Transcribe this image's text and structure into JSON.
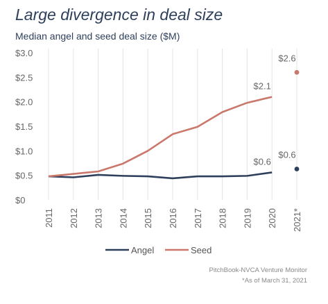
{
  "chart_data": {
    "type": "line",
    "title": "Large divergence in deal size",
    "subtitle": "Median angel and seed deal size ($M)",
    "categories": [
      "2011",
      "2012",
      "2013",
      "2014",
      "2015",
      "2016",
      "2017",
      "2018",
      "2019",
      "2020",
      "2021*"
    ],
    "y_ticks": [
      "$0",
      "$0.5",
      "$1.0",
      "$1.5",
      "$2.0",
      "$2.5",
      "$3.0"
    ],
    "ylim": [
      0,
      3.0
    ],
    "grid": "vertical",
    "legend_position": "bottom-center",
    "series": [
      {
        "name": "Angel",
        "color": "#2e3f5c",
        "values": [
          0.48,
          0.46,
          0.51,
          0.49,
          0.48,
          0.44,
          0.48,
          0.48,
          0.49,
          0.56,
          0.63
        ],
        "data_labels": {
          "9": "$0.6",
          "10": "$0.6"
        }
      },
      {
        "name": "Seed",
        "color": "#c9786b",
        "values": [
          0.48,
          0.53,
          0.58,
          0.74,
          1.0,
          1.34,
          1.49,
          1.79,
          1.98,
          2.1,
          2.6
        ],
        "data_labels": {
          "9": "$2.1",
          "10": "$2.6"
        }
      }
    ]
  },
  "source": "PitchBook-NVCA Venture Monitor",
  "footnote": "*As of March 31, 2021"
}
